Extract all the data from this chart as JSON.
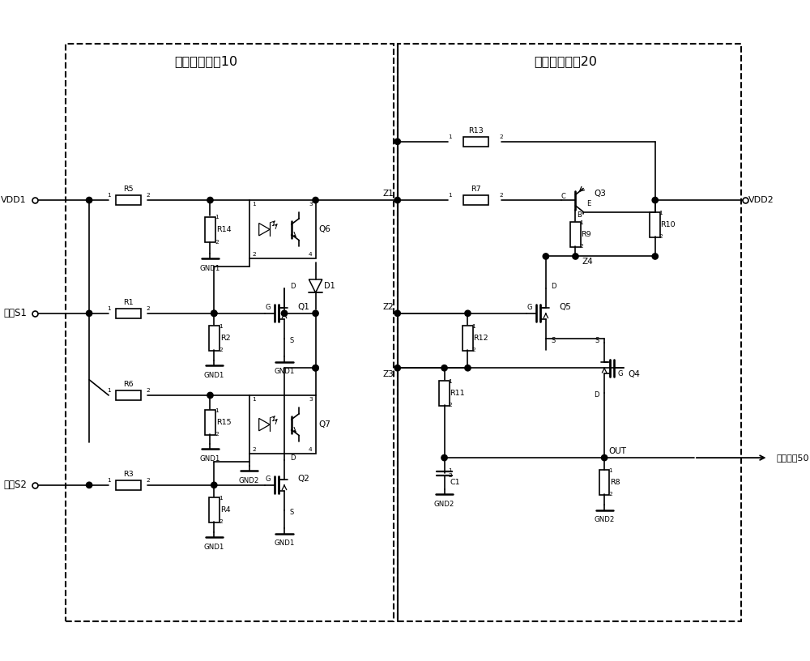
{
  "module1_label": "信号输入模块10",
  "module2_label": "信号输出模块20",
  "detect_label": "检测芯片50",
  "bg_color": "#ffffff",
  "line_color": "#000000"
}
